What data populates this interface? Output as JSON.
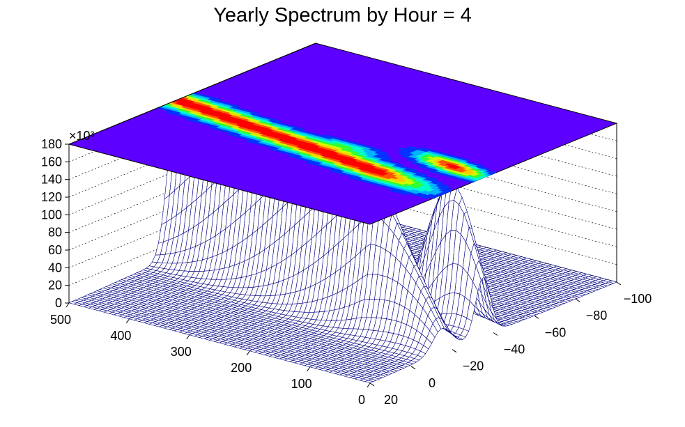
{
  "chart_data": {
    "type": "surface",
    "title": "Yearly Spectrum by Hour = 4",
    "z_multiplier_label": "×10³",
    "x_axis": {
      "label": "",
      "range": [
        0,
        500
      ],
      "ticks": [
        "0",
        "100",
        "200",
        "300",
        "400",
        "500"
      ]
    },
    "y_axis": {
      "label": "",
      "range": [
        -100,
        20
      ],
      "ticks": [
        "20",
        "0",
        "−20",
        "−40",
        "−60",
        "−80",
        "−100"
      ]
    },
    "z_axis": {
      "label": "",
      "range": [
        0,
        180
      ],
      "ticks": [
        "0",
        "20",
        "40",
        "60",
        "80",
        "100",
        "120",
        "140",
        "160",
        "180"
      ]
    },
    "grid": true,
    "projection": "contour-on-top-plane",
    "colors": {
      "mesh": "#000080",
      "contour_background": "#5c00ff",
      "palette": [
        "#5c00ff",
        "#0033ff",
        "#00b3ff",
        "#00ffcc",
        "#33ff33",
        "#ccff00",
        "#ffcc00",
        "#ff5500",
        "#ff0000"
      ]
    }
  }
}
